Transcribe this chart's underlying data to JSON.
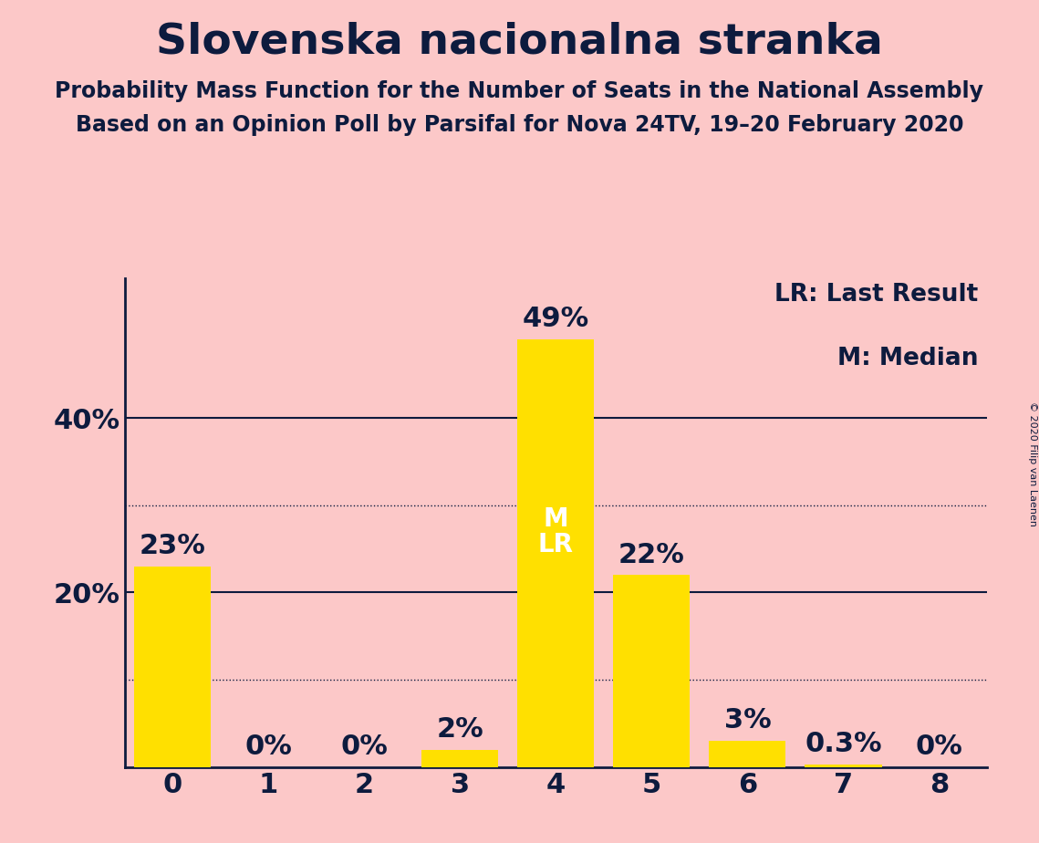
{
  "title": "Slovenska nacionalna stranka",
  "subtitle1": "Probability Mass Function for the Number of Seats in the National Assembly",
  "subtitle2": "Based on an Opinion Poll by Parsifal for Nova 24TV, 19–20 February 2020",
  "copyright": "© 2020 Filip van Laenen",
  "legend_lr": "LR: Last Result",
  "legend_m": "M: Median",
  "categories": [
    0,
    1,
    2,
    3,
    4,
    5,
    6,
    7,
    8
  ],
  "values": [
    0.23,
    0.0,
    0.0,
    0.02,
    0.49,
    0.22,
    0.03,
    0.003,
    0.0
  ],
  "labels": [
    "23%",
    "0%",
    "0%",
    "2%",
    "49%",
    "22%",
    "3%",
    "0.3%",
    "0%"
  ],
  "bar_color": "#FFE000",
  "background_color": "#fcc8c8",
  "text_color": "#0d1b3e",
  "bar_label_color_inside": "#ffffff",
  "median_seat": 4,
  "lr_seat": 4,
  "ylim": [
    0,
    0.56
  ],
  "yticks": [
    0.2,
    0.4
  ],
  "ytick_labels": [
    "20%",
    "40%"
  ],
  "dotted_lines": [
    0.1,
    0.3
  ],
  "solid_lines": [
    0.2,
    0.4
  ],
  "title_fontsize": 34,
  "subtitle_fontsize": 17,
  "axis_fontsize": 22,
  "bar_label_fontsize": 22,
  "inside_label_fontsize": 20,
  "legend_fontsize": 19,
  "copyright_fontsize": 8
}
